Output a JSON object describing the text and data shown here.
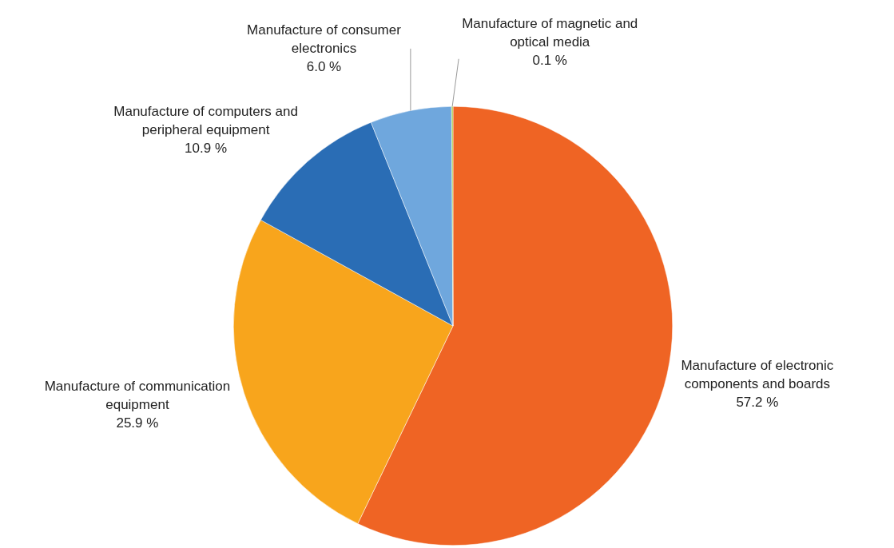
{
  "chart_data": {
    "type": "pie",
    "categories": [
      "Manufacture of electronic components and boards",
      "Manufacture of communication equipment",
      "Manufacture of computers and peripheral equipment",
      "Manufacture of consumer electronics",
      "Manufacture of magnetic and optical media"
    ],
    "values": [
      57.2,
      25.9,
      10.9,
      6.0,
      0.1
    ],
    "colors": [
      "#ef6424",
      "#f8a51c",
      "#2a6db5",
      "#6fa7dd",
      "#a6c83a"
    ],
    "value_labels": [
      "57.2 %",
      "25.9 %",
      "10.9 %",
      "6.0 %",
      "0.1 %"
    ],
    "legend": false
  }
}
